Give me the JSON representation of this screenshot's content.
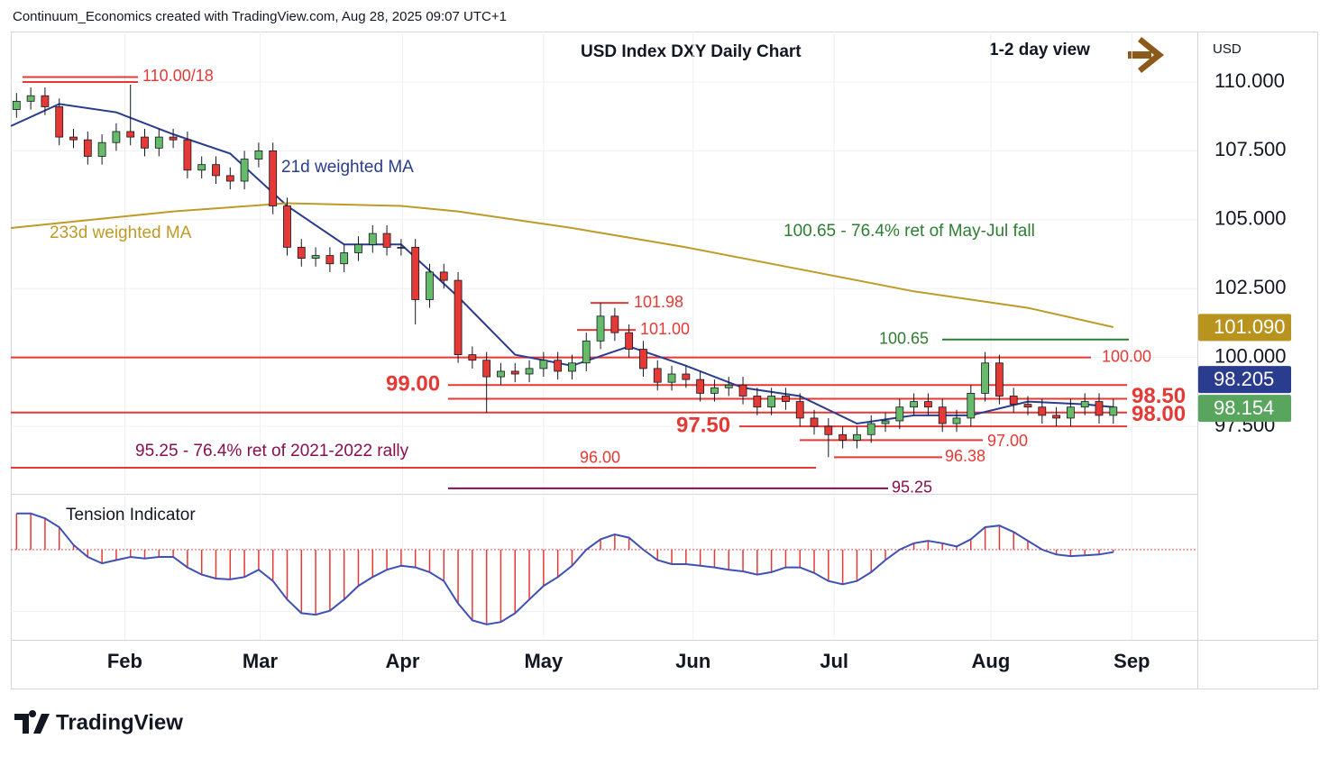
{
  "header": "Continuum_Economics created with TradingView.com, Aug 28, 2025 09:07 UTC+1",
  "brand": "TradingView",
  "chart_data": {
    "type": "candlestick",
    "title": "USD Index DXY Daily Chart",
    "view": "1-2 day view",
    "unit": "USD",
    "xlim": [
      -0.4,
      82.9
    ],
    "xticks": [
      {
        "value": 7.6,
        "label": "Feb"
      },
      {
        "value": 17.1,
        "label": "Mar"
      },
      {
        "value": 27.1,
        "label": "Apr"
      },
      {
        "value": 37.0,
        "label": "May"
      },
      {
        "value": 47.5,
        "label": "Jun"
      },
      {
        "value": 57.4,
        "label": "Jul"
      },
      {
        "value": 68.4,
        "label": "Aug"
      },
      {
        "value": 78.3,
        "label": "Sep"
      }
    ],
    "ylim": [
      95.05,
      111.83
    ],
    "yticks": [
      {
        "value": 110,
        "label": "110.000"
      },
      {
        "value": 107.5,
        "label": "107.500"
      },
      {
        "value": 105,
        "label": "105.000"
      },
      {
        "value": 102.5,
        "label": "102.500"
      },
      {
        "value": 100,
        "label": "100.000"
      },
      {
        "value": 97.5,
        "label": "97.500"
      }
    ],
    "grid": true,
    "up_color": "#66bb6a",
    "down_color": "#e53935",
    "open": [
      109.0,
      109.3,
      109.5,
      109.1,
      108.0,
      107.9,
      107.3,
      107.8,
      108.2,
      108.0,
      107.6,
      108.0,
      107.9,
      106.8,
      107.0,
      106.6,
      106.4,
      107.2,
      107.5,
      105.5,
      104.0,
      103.6,
      103.7,
      103.4,
      103.8,
      104.1,
      104.5,
      104.0,
      104.0,
      102.1,
      103.1,
      102.8,
      100.1,
      99.9,
      99.3,
      99.5,
      99.4,
      99.6,
      99.9,
      99.5,
      99.8,
      100.6,
      101.5,
      100.9,
      100.3,
      99.6,
      99.1,
      99.4,
      99.2,
      98.7,
      98.9,
      99.0,
      98.6,
      98.2,
      98.6,
      98.4,
      97.8,
      97.5,
      97.2,
      97.0,
      97.2,
      97.6,
      97.7,
      98.2,
      98.4,
      98.2,
      97.6,
      97.8,
      98.7,
      99.8,
      98.6,
      98.3,
      98.2,
      97.9,
      97.8,
      98.2,
      98.4,
      97.9
    ],
    "high": [
      109.6,
      109.8,
      109.8,
      109.4,
      108.3,
      108.2,
      108.1,
      108.5,
      109.9,
      108.3,
      108.3,
      108.3,
      108.2,
      107.3,
      107.3,
      106.9,
      107.5,
      107.8,
      107.8,
      105.8,
      104.3,
      104.0,
      104.0,
      104.1,
      104.4,
      104.8,
      104.8,
      104.3,
      104.3,
      103.4,
      103.4,
      103.1,
      100.4,
      100.2,
      99.8,
      99.8,
      99.9,
      100.2,
      100.2,
      100.1,
      100.9,
      101.98,
      101.8,
      101.2,
      100.6,
      99.9,
      99.7,
      99.7,
      99.5,
      99.2,
      99.3,
      99.3,
      98.9,
      98.9,
      98.9,
      98.7,
      98.1,
      97.8,
      97.5,
      97.5,
      97.9,
      98.0,
      98.5,
      98.7,
      98.7,
      98.5,
      98.1,
      99.0,
      100.2,
      100.1,
      98.9,
      98.6,
      98.5,
      98.2,
      98.5,
      98.7,
      98.7,
      98.5
    ],
    "low": [
      108.7,
      109.0,
      108.8,
      107.7,
      107.6,
      107.0,
      107.0,
      107.5,
      107.7,
      107.3,
      107.3,
      107.6,
      106.5,
      106.5,
      106.3,
      106.1,
      106.1,
      106.9,
      105.2,
      103.7,
      103.3,
      103.3,
      103.1,
      103.1,
      103.5,
      103.8,
      103.7,
      103.7,
      101.2,
      101.8,
      102.5,
      99.8,
      99.6,
      98.0,
      99.0,
      99.1,
      99.1,
      99.3,
      99.2,
      99.2,
      99.5,
      100.3,
      100.6,
      100.0,
      99.3,
      98.8,
      98.8,
      98.9,
      98.4,
      98.4,
      98.6,
      98.3,
      97.9,
      97.9,
      98.1,
      97.5,
      97.2,
      96.38,
      96.7,
      96.7,
      96.9,
      97.3,
      97.4,
      97.9,
      97.9,
      97.3,
      97.3,
      97.5,
      98.4,
      98.3,
      98.0,
      97.9,
      97.6,
      97.5,
      97.5,
      97.9,
      97.6,
      97.6
    ],
    "close": [
      109.3,
      109.5,
      109.1,
      108.0,
      107.9,
      107.3,
      107.8,
      108.2,
      108.0,
      107.6,
      108.0,
      107.9,
      106.8,
      107.0,
      106.6,
      106.4,
      107.2,
      107.5,
      105.5,
      104.0,
      103.6,
      103.7,
      103.4,
      103.8,
      104.1,
      104.5,
      104.0,
      104.0,
      102.1,
      103.1,
      102.8,
      100.1,
      99.9,
      99.3,
      99.5,
      99.4,
      99.6,
      99.9,
      99.5,
      99.8,
      100.6,
      101.5,
      100.9,
      100.3,
      99.6,
      99.1,
      99.4,
      99.2,
      98.7,
      98.9,
      99.0,
      98.6,
      98.2,
      98.6,
      98.4,
      97.8,
      97.5,
      97.2,
      97.0,
      97.2,
      97.6,
      97.7,
      98.2,
      98.4,
      98.2,
      97.6,
      97.8,
      98.7,
      99.8,
      98.6,
      98.3,
      98.2,
      97.9,
      97.8,
      98.2,
      98.4,
      97.9,
      98.2
    ],
    "series": [
      {
        "name": "21d weighted MA",
        "color": "#2a3c8e",
        "x": [
          -0.4,
          3,
          7,
          11,
          15,
          19,
          23,
          27,
          31,
          35,
          39,
          43,
          47,
          51,
          55,
          59,
          63,
          67,
          71,
          75,
          77
        ],
        "values": [
          108.4,
          109.2,
          108.9,
          108.1,
          107.4,
          105.5,
          104.1,
          104.1,
          102.2,
          100.1,
          99.7,
          100.4,
          99.7,
          98.9,
          98.6,
          97.6,
          97.9,
          97.9,
          98.4,
          98.3,
          98.2
        ]
      },
      {
        "name": "233d weighted MA",
        "color": "#bf9a26",
        "x": [
          -0.4,
          11,
          19,
          27,
          31,
          39,
          47,
          55,
          63,
          71,
          77
        ],
        "values": [
          104.7,
          105.3,
          105.6,
          105.5,
          105.3,
          104.7,
          104.0,
          103.2,
          102.4,
          101.8,
          101.1
        ]
      }
    ],
    "levels": [
      {
        "value": 110.18,
        "label": "110.00/18",
        "color": "#e53935"
      },
      {
        "value": 110.0,
        "color": "#e53935"
      },
      {
        "value": 101.98,
        "label": "101.98",
        "color": "#e53935"
      },
      {
        "value": 101.0,
        "label": "101.00",
        "color": "#e53935"
      },
      {
        "value": 100.65,
        "label": "100.65",
        "color": "#2e7d32"
      },
      {
        "value": 100.0,
        "label": "100.00",
        "color": "#e53935"
      },
      {
        "value": 99.0,
        "label": "99.00",
        "color": "#e53935"
      },
      {
        "value": 98.5,
        "label": "98.50",
        "color": "#e53935"
      },
      {
        "value": 98.0,
        "label": "98.00",
        "color": "#e53935"
      },
      {
        "value": 97.5,
        "label": "97.50",
        "color": "#e53935"
      },
      {
        "value": 97.0,
        "label": "97.00",
        "color": "#e53935"
      },
      {
        "value": 96.38,
        "label": "96.38",
        "color": "#e53935"
      },
      {
        "value": 96.0,
        "label": "96.00",
        "color": "#e53935"
      },
      {
        "value": 95.25,
        "label": "95.25",
        "color": "#880e4f"
      }
    ],
    "annotations": [
      {
        "text": "100.65 - 76.4% ret of May-Jul fall",
        "color": "#2e7d32"
      },
      {
        "text": "95.25 - 76.4% ret of 2021-2022 rally",
        "color": "#880e4f"
      }
    ],
    "price_tags": [
      {
        "value": 101.09,
        "label": "101.090",
        "color": "#b8941f"
      },
      {
        "value": 98.205,
        "label": "98.205",
        "color": "#2a3c8e"
      },
      {
        "value": 98.154,
        "label": "98.154",
        "color": "#5aa55e"
      }
    ],
    "indicator": {
      "title": "Tension Indicator",
      "ylim": [
        -1.1,
        0.65
      ],
      "color": "#e53935",
      "line_color": "#3f51b5",
      "values": [
        0.45,
        0.45,
        0.39,
        0.28,
        0.06,
        -0.09,
        -0.17,
        -0.13,
        -0.09,
        -0.11,
        -0.09,
        -0.09,
        -0.22,
        -0.31,
        -0.36,
        -0.37,
        -0.34,
        -0.25,
        -0.39,
        -0.62,
        -0.79,
        -0.81,
        -0.76,
        -0.62,
        -0.45,
        -0.34,
        -0.25,
        -0.2,
        -0.22,
        -0.28,
        -0.39,
        -0.67,
        -0.88,
        -0.93,
        -0.9,
        -0.79,
        -0.62,
        -0.45,
        -0.34,
        -0.2,
        0,
        0.13,
        0.19,
        0.15,
        0,
        -0.13,
        -0.18,
        -0.18,
        -0.2,
        -0.22,
        -0.25,
        -0.27,
        -0.31,
        -0.28,
        -0.22,
        -0.22,
        -0.29,
        -0.39,
        -0.43,
        -0.39,
        -0.28,
        -0.13,
        0,
        0.08,
        0.11,
        0.08,
        0.04,
        0.13,
        0.28,
        0.3,
        0.22,
        0.11,
        0,
        -0.06,
        -0.08,
        -0.07,
        -0.06,
        -0.03
      ]
    }
  }
}
